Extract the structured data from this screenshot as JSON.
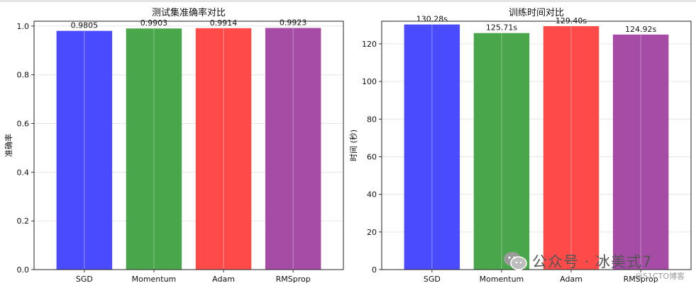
{
  "chart_data": [
    {
      "type": "bar",
      "title": "测试集准确率对比",
      "xlabel": "",
      "ylabel": "准确率",
      "categories": [
        "SGD",
        "Momentum",
        "Adam",
        "RMSprop"
      ],
      "values": [
        0.9805,
        0.9903,
        0.9914,
        0.9923
      ],
      "value_labels": [
        "0.9805",
        "0.9903",
        "0.9914",
        "0.9923"
      ],
      "colors": [
        "#4a4aff",
        "#4aa64a",
        "#ff4a4a",
        "#a64ca6"
      ],
      "ylim": [
        0,
        1.02
      ],
      "yticks": [
        0.0,
        0.2,
        0.4,
        0.6,
        0.8,
        1.0
      ],
      "ytick_labels": [
        "0.0",
        "0.2",
        "0.4",
        "0.6",
        "0.8",
        "1.0"
      ],
      "grid": true
    },
    {
      "type": "bar",
      "title": "训练时间对比",
      "xlabel": "",
      "ylabel": "时间 (秒)",
      "categories": [
        "SGD",
        "Momentum",
        "Adam",
        "RMSprop"
      ],
      "values": [
        130.28,
        125.71,
        129.4,
        124.92
      ],
      "value_labels": [
        "130.28s",
        "125.71s",
        "129.40s",
        "124.92s"
      ],
      "colors": [
        "#4a4aff",
        "#4aa64a",
        "#ff4a4a",
        "#a64ca6"
      ],
      "ylim": [
        0,
        132
      ],
      "yticks": [
        0,
        20,
        40,
        60,
        80,
        100,
        120
      ],
      "ytick_labels": [
        "0",
        "20",
        "40",
        "60",
        "80",
        "100",
        "120"
      ],
      "grid": true
    }
  ],
  "watermark": {
    "text": "公众号 · 冰美式7",
    "sub": "@51CTO博客",
    "icon": "wechat-icon"
  }
}
